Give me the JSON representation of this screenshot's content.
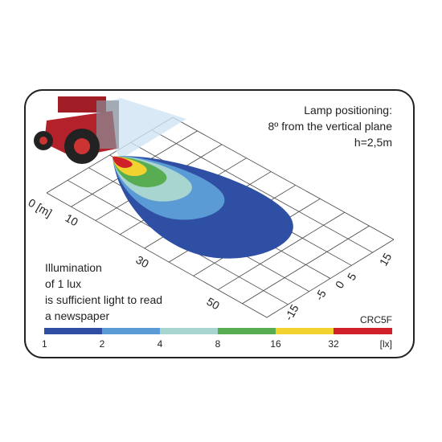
{
  "positioning": {
    "lines": [
      "Lamp positioning:",
      "8º from the vertical plane",
      "h=2,5m"
    ]
  },
  "note": {
    "lines": [
      "Illumination",
      "of 1 lux",
      "is sufficient light to read",
      "a newspaper"
    ]
  },
  "distance_axis": {
    "labels": [
      "0 [m]",
      "10",
      "30",
      "50"
    ]
  },
  "lateral_axis": {
    "labels": [
      "15",
      "5",
      "0",
      "-5",
      "-15"
    ]
  },
  "model": "CRC5F",
  "scale": {
    "labels": [
      "1",
      "2",
      "4",
      "8",
      "16",
      "32",
      "[lx]"
    ]
  }
}
